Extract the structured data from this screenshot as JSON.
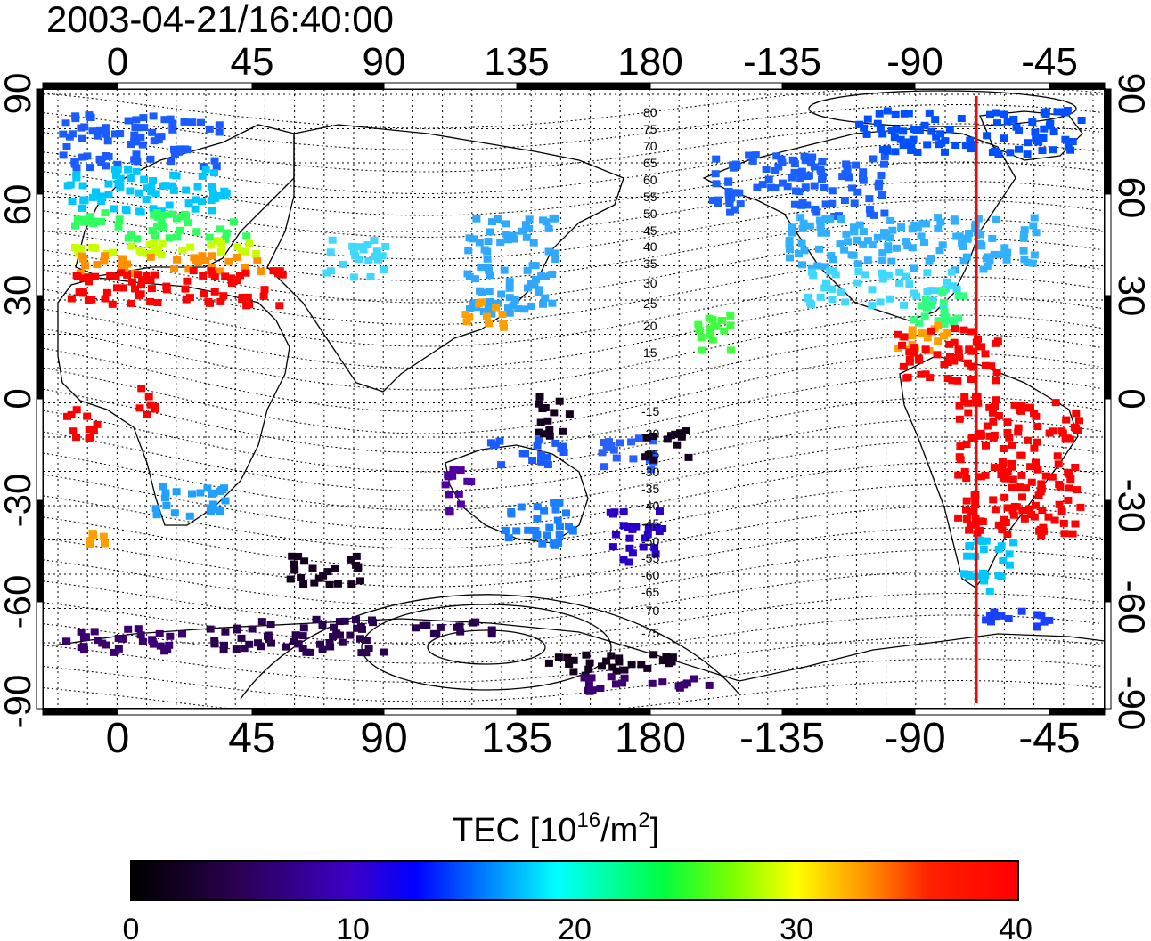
{
  "timestamp": "2003-04-21/16:40:00",
  "lon_ticks": [
    "0",
    "45",
    "90",
    "135",
    "180",
    "-135",
    "-90",
    "-45"
  ],
  "lat_ticks": [
    "90",
    "60",
    "30",
    "0",
    "-30",
    "-60",
    "-90"
  ],
  "contour_labels_north": [
    "80",
    "75",
    "70",
    "65",
    "60",
    "55",
    "50",
    "45",
    "40",
    "35",
    "30",
    "25",
    "20",
    "15"
  ],
  "contour_labels_south": [
    "-15",
    "-20",
    "-25",
    "-30",
    "-35",
    "-40",
    "-45",
    "-50",
    "-55",
    "-60",
    "-65",
    "-70",
    "-75"
  ],
  "colorbar": {
    "title_main": "TEC  [10",
    "title_exp1": "16",
    "title_mid": "/m",
    "title_exp2": "2",
    "title_end": "]",
    "ticks": [
      "0",
      "10",
      "20",
      "30",
      "40"
    ],
    "min": 0,
    "max": 40
  },
  "marker_line_color": "#ff0000",
  "colors": {
    "low": "#000000",
    "purple": "#4b0082",
    "blue": "#0000ff",
    "cyan": "#00ffff",
    "green": "#00ff00",
    "yellow": "#ffff00",
    "red": "#ff0000"
  }
}
